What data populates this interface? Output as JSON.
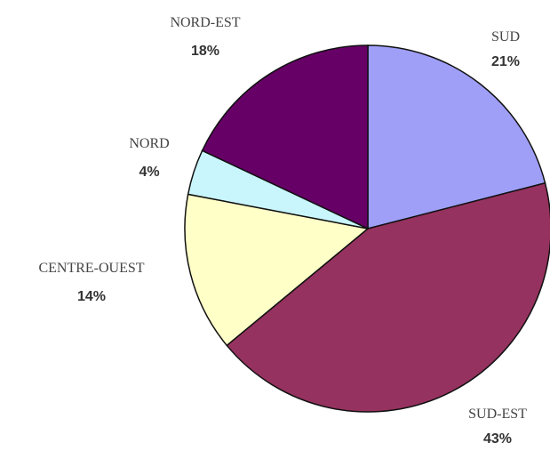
{
  "chart_data": {
    "type": "pie",
    "title": "",
    "slices": [
      {
        "label": "SUD",
        "value": 21,
        "display": "21%",
        "color": "#9f9ff8"
      },
      {
        "label": "SUD-EST",
        "value": 43,
        "display": "43%",
        "color": "#96325f"
      },
      {
        "label": "CENTRE-OUEST",
        "value": 14,
        "display": "14%",
        "color": "#ffffc8"
      },
      {
        "label": "NORD",
        "value": 4,
        "display": "4%",
        "color": "#c8f6fc"
      },
      {
        "label": "NORD-EST",
        "value": 18,
        "display": "18%",
        "color": "#660066"
      }
    ],
    "legend": "none"
  }
}
